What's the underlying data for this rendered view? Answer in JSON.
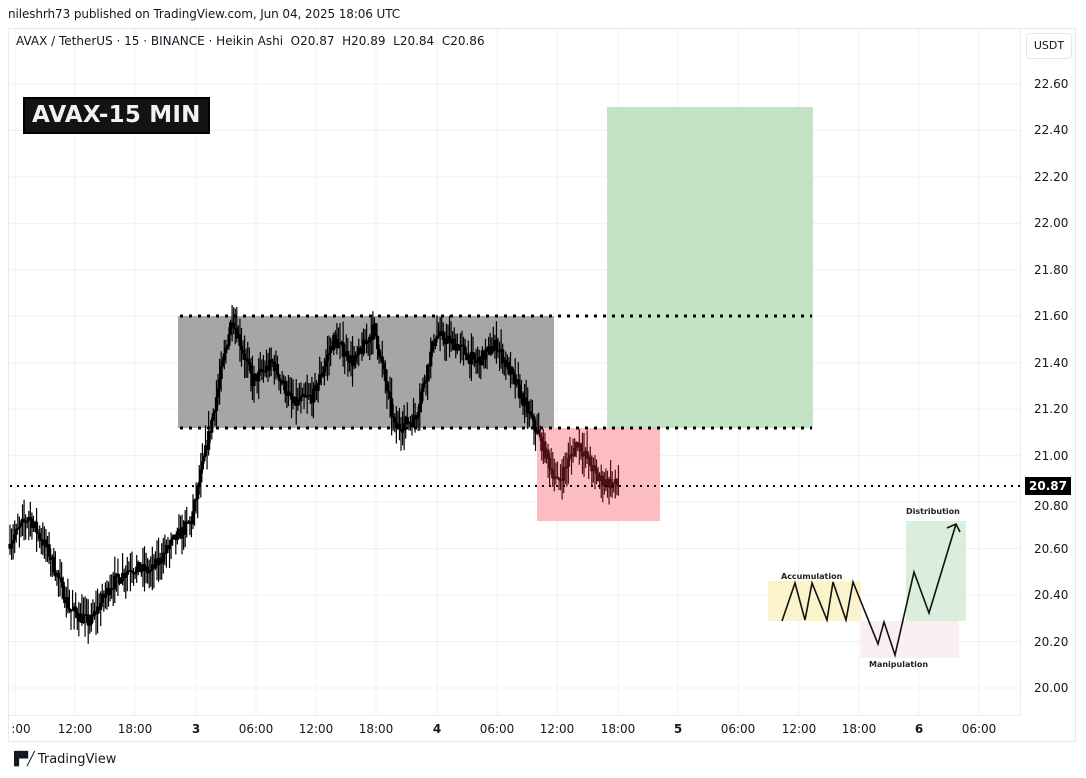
{
  "header": {
    "published": "nileshrh73 published on TradingView.com, Jun 04, 2025 18:06 UTC"
  },
  "legend": {
    "symbol": "AVAX / TetherUS · 15 · BINANCE · Heikin Ashi",
    "open": "O20.87",
    "high": "H20.89",
    "low": "L20.84",
    "close": "C20.86"
  },
  "badge": {
    "text": "AVAX-15 MIN"
  },
  "price_axis": {
    "currency": "USDT",
    "labels": [
      "22.60",
      "22.40",
      "22.20",
      "22.00",
      "21.80",
      "21.60",
      "21.40",
      "21.20",
      "21.00",
      "20.80",
      "20.60",
      "20.40",
      "20.20",
      "20.00"
    ],
    "current_price": "20.87"
  },
  "time_axis": {
    "labels": [
      ":00",
      "12:00",
      "18:00",
      "3",
      "06:00",
      "12:00",
      "18:00",
      "4",
      "06:00",
      "12:00",
      "18:00",
      "5",
      "06:00",
      "12:00",
      "18:00",
      "6",
      "06:00"
    ]
  },
  "footer": {
    "brand": "TradingView"
  },
  "inset": {
    "accumulation": "Accumulation",
    "manipulation": "Manipulation",
    "distribution": "Distribution"
  },
  "colors": {
    "candle": "#000000",
    "range_box": "#a6a6a6",
    "target_box": "#c4e3c4",
    "stop_box": "#fbbcc2",
    "grid": "#f0f0f0"
  },
  "chart_data": {
    "type": "candlestick",
    "title": "AVAX / TetherUS · 15 · BINANCE · Heikin Ashi",
    "subtitle": "AVAX-15 MIN",
    "xlabel": "",
    "ylabel": "USDT",
    "ylim": [
      20.0,
      22.6
    ],
    "grid": true,
    "ohlc_last": {
      "open": 20.87,
      "high": 20.89,
      "low": 20.84,
      "close": 20.86
    },
    "x_ticks": [
      ":00",
      "12:00",
      "18:00",
      "3",
      "06:00",
      "12:00",
      "18:00",
      "4",
      "06:00",
      "12:00",
      "18:00",
      "5",
      "06:00",
      "12:00",
      "18:00",
      "6",
      "06:00"
    ],
    "y_ticks": [
      20.0,
      20.2,
      20.4,
      20.6,
      20.8,
      21.0,
      21.2,
      21.4,
      21.6,
      21.8,
      22.0,
      22.2,
      22.4,
      22.6
    ],
    "price_path": {
      "x": [
        "Jun 2 06:00",
        "Jun 2 08:00",
        "Jun 2 10:00",
        "Jun 2 12:00",
        "Jun 2 14:00",
        "Jun 2 16:00",
        "Jun 2 18:00",
        "Jun 2 20:00",
        "Jun 2 22:00",
        "Jun 3 00:00",
        "Jun 3 02:00",
        "Jun 3 04:00",
        "Jun 3 06:00",
        "Jun 3 08:00",
        "Jun 3 10:00",
        "Jun 3 12:00",
        "Jun 3 14:00",
        "Jun 3 16:00",
        "Jun 3 18:00",
        "Jun 3 20:00",
        "Jun 3 22:00",
        "Jun 4 00:00",
        "Jun 4 02:00",
        "Jun 4 04:00",
        "Jun 4 06:00",
        "Jun 4 08:00",
        "Jun 4 10:00",
        "Jun 4 12:00",
        "Jun 4 14:00",
        "Jun 4 16:00",
        "Jun 4 18:00"
      ],
      "close": [
        20.62,
        20.74,
        20.58,
        20.34,
        20.28,
        20.44,
        20.52,
        20.5,
        20.62,
        20.72,
        21.15,
        21.6,
        21.32,
        21.4,
        21.22,
        21.26,
        21.5,
        21.4,
        21.55,
        21.12,
        21.16,
        21.52,
        21.48,
        21.4,
        21.48,
        21.3,
        21.1,
        20.88,
        21.06,
        20.9,
        20.87
      ]
    },
    "annotations": [
      {
        "type": "range_box",
        "label": "consolidation range",
        "top": 21.6,
        "bottom": 21.12,
        "color": "#a6a6a6"
      },
      {
        "type": "hline_dotted",
        "value": 21.6
      },
      {
        "type": "hline_dotted",
        "value": 21.12
      },
      {
        "type": "hline_dotted",
        "value": 20.87,
        "label": "current price"
      },
      {
        "type": "target_box",
        "top": 22.5,
        "bottom": 21.12,
        "color": "#c4e3c4"
      },
      {
        "type": "manipulation_box",
        "top": 21.12,
        "bottom": 20.72,
        "color": "#fbbcc2"
      },
      {
        "type": "inset_diagram",
        "phases": [
          "Accumulation",
          "Manipulation",
          "Distribution"
        ]
      }
    ]
  }
}
